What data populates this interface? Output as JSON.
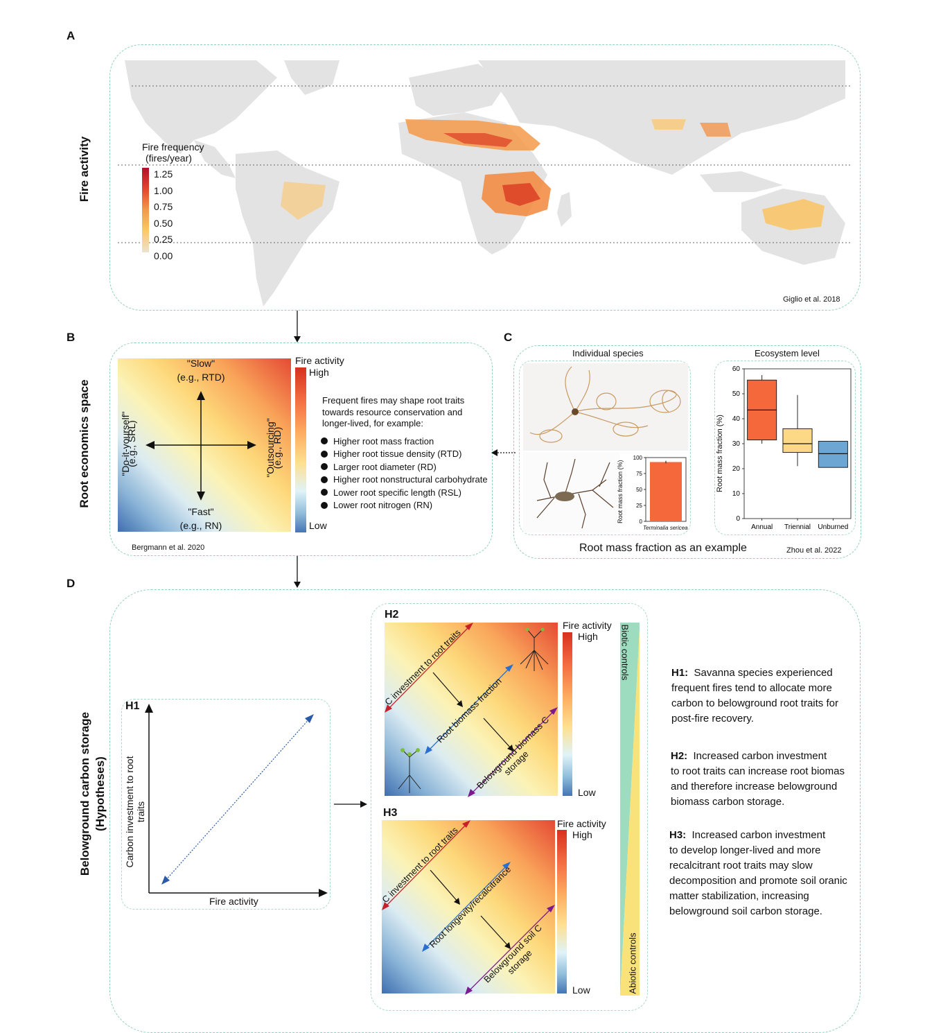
{
  "panel_letters": {
    "a": "A",
    "b": "B",
    "c": "C",
    "d": "D"
  },
  "panel_a": {
    "side_label": "Fire activity",
    "legend_title_1": "Fire frequency",
    "legend_title_2": "(fires/year)",
    "legend_ticks": [
      "1.25",
      "1.00",
      "0.75",
      "0.50",
      "0.25",
      "0.00"
    ],
    "citation": "Giglio et al. 2018"
  },
  "panel_b": {
    "side_label": "Root economics space",
    "slow_label": "\"Slow\"",
    "slow_sub": "(e.g., RTD)",
    "fast_label": "\"Fast\"",
    "fast_sub": "(e.g., RN)",
    "diy_label": "\"Do-it-yourself\"",
    "diy_sub": "(e.g., SRL)",
    "out_label": "\"Outsourcing\"",
    "out_sub": "(e.g., RD)",
    "bar_title": "Fire activity",
    "bar_high": "High",
    "bar_low": "Low",
    "intro_1": "Frequent fires may shape root traits",
    "intro_2": "towards resource conservation and",
    "intro_3": "longer-lived, for example:",
    "bullets": [
      "Higher root mass fraction",
      "Higher root tissue density (RTD)",
      "Larger root diameter (RD)",
      "Higher root nonstructural carbohydrate",
      "Lower root specific length (RSL)",
      "Lower root nitrogen (RN)"
    ],
    "citation": "Bergmann et al. 2020"
  },
  "panel_c": {
    "individual_title": "Individual species",
    "ecosystem_title": "Ecosystem level",
    "footer": "Root mass fraction as an example",
    "citation": "Zhou et al. 2022",
    "small_chart": {
      "ylabel": "Root mass fraction (%)",
      "yticks": [
        "100",
        "75",
        "50",
        "25",
        "0"
      ],
      "species": "Terminalia sericea"
    },
    "box_chart": {
      "ylabel": "Root mass fraction (%)",
      "yticks": [
        "60",
        "50",
        "40",
        "30",
        "20",
        "10",
        "0"
      ],
      "categories": [
        "Annual",
        "Triennial",
        "Unburned"
      ]
    }
  },
  "panel_d": {
    "side_label_1": "Belowground carbon storage",
    "side_label_2": "(Hypotheses)",
    "h1": {
      "tag": "H1",
      "ylabel": "Carbon investment to root traits",
      "xlabel": "Fire activity"
    },
    "h2": {
      "tag": "H2",
      "arrow1": "C investment to root traits",
      "arrow2": "Root biomass fraction",
      "arrow3a": "Belowground biomass C",
      "arrow3b": "storage",
      "bar_title": "Fire activity",
      "bar_high": "High",
      "bar_low": "Low"
    },
    "h3": {
      "tag": "H3",
      "arrow1": "C investment to root traits",
      "arrow2": "Root longevity/recalcitrance",
      "arrow3a": "Belowground soil C",
      "arrow3b": "storage",
      "bar_title": "Fire activity",
      "bar_high": "High",
      "bar_low": "Low"
    },
    "biotic": "Biotic controls",
    "abiotic": "Abiotic controls",
    "hyp1_tag": "H1:",
    "hyp1_l1": "Savanna species experienced",
    "hyp1_l2": "frequent fires tend to allocate more",
    "hyp1_l3": "carbon to belowground root traits for",
    "hyp1_l4": "post-fire recovery.",
    "hyp2_tag": "H2:",
    "hyp2_l1": "Increased carbon investment",
    "hyp2_l2": "to root traits can increase root biomas",
    "hyp2_l3": "and therefore increase belowground",
    "hyp2_l4": "biomass carbon storage.",
    "hyp3_tag": "H3:",
    "hyp3_l1": "Increased carbon investment",
    "hyp3_l2": "to develop longer-lived and more",
    "hyp3_l3": "recalcitrant root traits may slow",
    "hyp3_l4": "decomposition and promote soil oranic",
    "hyp3_l5": "matter stabilization, increasing",
    "hyp3_l6": "belowground soil carbon storage."
  },
  "chart_data": {
    "type": "box",
    "categories": [
      "Annual",
      "Triennial",
      "Unburned"
    ],
    "ylabel": "Root mass fraction (%)",
    "ylim": [
      0,
      60
    ],
    "boxes": [
      {
        "category": "Annual",
        "min": 30,
        "q1": 31.5,
        "median": 43.5,
        "q3": 55.5,
        "max": 57.5,
        "color": "#f4683c"
      },
      {
        "category": "Triennial",
        "min": 21,
        "q1": 26.5,
        "median": 30,
        "q3": 36,
        "max": 49.5,
        "color": "#fdd887"
      },
      {
        "category": "Unburned",
        "min": 20.5,
        "q1": 20.5,
        "median": 26,
        "q3": 31,
        "max": 31,
        "color": "#6ea6d3"
      }
    ],
    "inset": {
      "type": "bar",
      "category": "Terminalia sericea",
      "value": 93,
      "ylim": [
        0,
        100
      ],
      "color": "#f4683c"
    }
  }
}
